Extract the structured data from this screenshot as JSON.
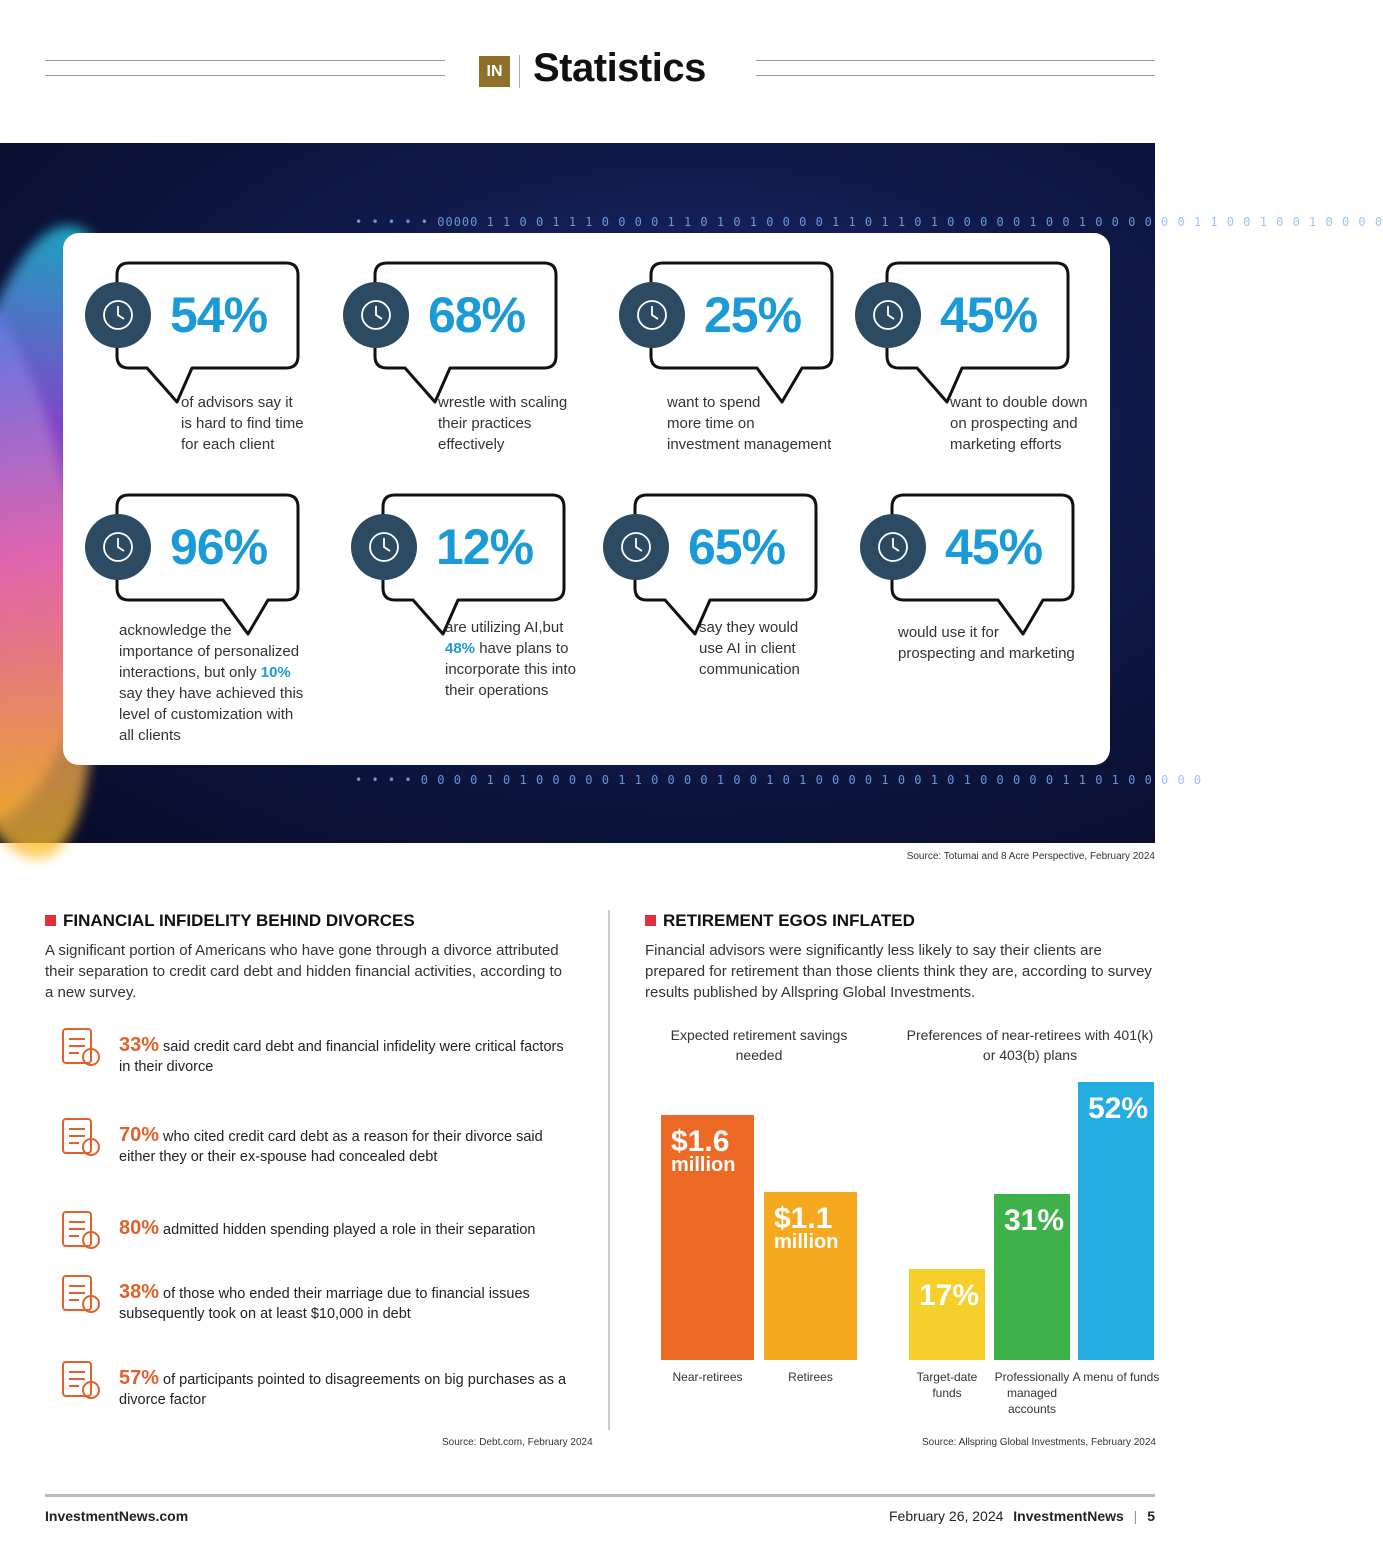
{
  "header": {
    "logo": "IN",
    "title": "Statistics"
  },
  "colors": {
    "accent_blue": "#1a9ad6",
    "icon_navy": "#2d4a63",
    "orange": "#e0622a",
    "gold": "#8e7028",
    "section_red": "#e0303a"
  },
  "banner": {
    "binary_top": "• • • • • 00000 1 1 0 0 1 1 1 0 0 0 0 1 1 0 1 0 1 0 0 0 0 1 1 0 1 1 0 1 0 0 0 0 0 1 0 0 1 0 0 0 0 0 0 1 1 0 0 1   0 0   1 0 0   0   0",
    "binary_bottom": "• • • • 0 0 0 0 1 0 1 0 0 0 0 0 1 1 0 0 0 0 1 0 0 1 0 1 0 0 0 0 1 0 0 1 0 1 0 0 0 0 0 1 1   0   1 0   0 0 0 0"
  },
  "stats": [
    {
      "icon": "clock-icon",
      "value": "54%",
      "caption": "of advisors say it\nis hard to find time\nfor each client"
    },
    {
      "icon": "flowchart-icon",
      "value": "68%",
      "caption": "wrestle with scaling\ntheir practices\neffectively"
    },
    {
      "icon": "presentation-chart-icon",
      "value": "25%",
      "caption": "want to spend\nmore time on\ninvestment management"
    },
    {
      "icon": "strategy-board-icon",
      "value": "45%",
      "caption": "want to double down\non prospecting and\nmarketing efforts"
    },
    {
      "icon": "client-interaction-icon",
      "value": "96%",
      "caption_parts": [
        "acknowledge the\nimportance of personalized\ninteractions, but only ",
        "10%",
        "\nsay they have achieved this\nlevel of customization with\nall clients"
      ]
    },
    {
      "icon": "ai-chip-icon",
      "value": "12%",
      "caption_parts": [
        "are utilizing AI,but\n",
        "48%",
        " have plans to\nincorporate this into\ntheir operations"
      ]
    },
    {
      "icon": "chat-bubbles-icon",
      "value": "65%",
      "caption": "say they would\nuse AI in client\ncommunication"
    },
    {
      "icon": "document-refresh-icon",
      "value": "45%",
      "caption": "would use it for\nprospecting and marketing"
    }
  ],
  "stats_source": "Source: Totumai and 8 Acre Perspective, February 2024",
  "left": {
    "title": "FINANCIAL INFIDELITY BEHIND DIVORCES",
    "intro": "A significant portion of Americans who have gone through a divorce attributed their separation to credit card debt and hidden financial activities, according to a new survey.",
    "items": [
      {
        "icon": "credit-card-hand-icon",
        "pct": "33%",
        "text": " said credit card debt and financial infidelity were critical factors in their divorce"
      },
      {
        "icon": "receipt-dollar-icon",
        "pct": "70%",
        "text": " who cited credit card debt as a reason for their divorce said either they or their ex-spouse had concealed debt"
      },
      {
        "icon": "hidden-money-hand-icon",
        "pct": "80%",
        "text": " admitted hidden spending played a role in their separation"
      },
      {
        "icon": "debt-document-icon",
        "pct": "38%",
        "text": " of those who ended their marriage due to financial issues subsequently took on at least $10,000 in debt"
      },
      {
        "icon": "price-tag-dollar-icon",
        "pct": "57%",
        "text": " of participants pointed to disagreements on big purchases as a divorce factor"
      }
    ],
    "source": "Source: Debt.com, February 2024"
  },
  "right": {
    "title": "RETIREMENT EGOS INFLATED",
    "intro": "Financial advisors were significantly less likely to say their clients are prepared for retirement than those clients think they are, according to survey results published by Allspring Global Investments.",
    "source": "Source: Allspring Global Investments, February 2024"
  },
  "chart_data": [
    {
      "type": "bar",
      "title": "Expected retirement savings needed",
      "unit": "million USD",
      "categories": [
        "Near-retirees",
        "Retirees"
      ],
      "values": [
        1.6,
        1.1
      ],
      "labels": [
        [
          "$1.6",
          "million"
        ],
        [
          "$1.1",
          "million"
        ]
      ],
      "colors": [
        "#ec6a25",
        "#f5a91f"
      ]
    },
    {
      "type": "bar",
      "title": "Preferences of near-retirees with 401(k) or 403(b) plans",
      "unit": "%",
      "categories": [
        "Target-date funds",
        "Professionally managed accounts",
        "A menu of funds"
      ],
      "values": [
        17,
        31,
        52
      ],
      "labels": [
        [
          "17%"
        ],
        [
          "31%"
        ],
        [
          "52%"
        ]
      ],
      "colors": [
        "#f7cf2a",
        "#3eb14a",
        "#23ade0"
      ]
    }
  ],
  "footer": {
    "site": "InvestmentNews.com",
    "date": "February 26, 2024",
    "brand": "InvestmentNews",
    "page": "5"
  }
}
